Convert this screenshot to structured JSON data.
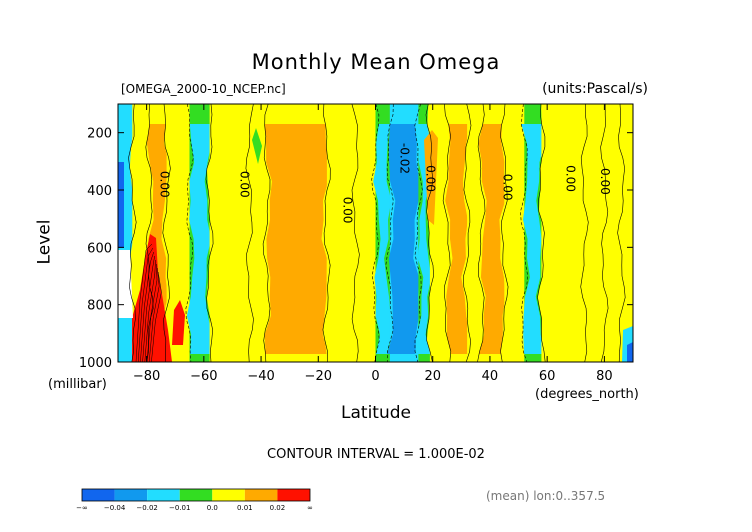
{
  "chart_data": {
    "type": "heatmap",
    "title": "Monthly Mean Omega",
    "subtitle_left": "[OMEGA_2000-10_NCEP.nc]",
    "subtitle_right": "(units:Pascal/s)",
    "xlabel": "Latitude",
    "xunit": "(degrees_north)",
    "ylabel": "Level",
    "yunit": "(millibar)",
    "xlim": [
      -90,
      90
    ],
    "ylim": [
      1000,
      100
    ],
    "x_ticks": [
      -80,
      -60,
      -40,
      -20,
      0,
      20,
      40,
      60,
      80
    ],
    "y_ticks": [
      200,
      400,
      600,
      800,
      1000
    ],
    "contour_interval": "CONTOUR INTERVAL = 1.000E-02",
    "footnote": "(mean) lon:0..357.5",
    "contour_labels": [
      {
        "text": "0.00",
        "lat": -74,
        "level": 380
      },
      {
        "text": "0.00",
        "lat": -46,
        "level": 380
      },
      {
        "text": "0.00",
        "lat": -10,
        "level": 470
      },
      {
        "text": "-0.02",
        "lat": 10,
        "level": 290
      },
      {
        "text": "0.00",
        "lat": 19,
        "level": 360
      },
      {
        "text": "0.00",
        "lat": 46,
        "level": 390
      },
      {
        "text": "0.00",
        "lat": 68,
        "level": 360
      },
      {
        "text": "0.00",
        "lat": 80,
        "level": 370
      }
    ],
    "colorbar": {
      "colors": [
        "#1166ee",
        "#1199ee",
        "#22ddff",
        "#33dd22",
        "#ffff00",
        "#ffaa00",
        "#ff1100"
      ],
      "labels": [
        "-∞",
        "-0.04",
        "-0.02",
        "-0.01",
        "0.0",
        "0.01",
        "0.02",
        "∞"
      ]
    },
    "bands": [
      {
        "lat": [
          -90,
          -85
        ],
        "value": -0.02
      },
      {
        "lat": [
          -85,
          -79
        ],
        "value": 0.005
      },
      {
        "lat": [
          -79,
          -73
        ],
        "value": 0.015
      },
      {
        "lat": [
          -73,
          -65
        ],
        "value": 0.005
      },
      {
        "lat": [
          -65,
          -58
        ],
        "value": -0.015
      },
      {
        "lat": [
          -58,
          -44
        ],
        "value": 0.0
      },
      {
        "lat": [
          -44,
          -38
        ],
        "value": 0.005
      },
      {
        "lat": [
          -38,
          -17
        ],
        "value": 0.015
      },
      {
        "lat": [
          -17,
          -7
        ],
        "value": 0.005
      },
      {
        "lat": [
          -7,
          0
        ],
        "value": 0.0
      },
      {
        "lat": [
          0,
          5
        ],
        "value": -0.015
      },
      {
        "lat": [
          5,
          15
        ],
        "value": -0.025
      },
      {
        "lat": [
          15,
          19
        ],
        "value": -0.015
      },
      {
        "lat": [
          19,
          25
        ],
        "value": 0.005
      },
      {
        "lat": [
          25,
          32
        ],
        "value": 0.015
      },
      {
        "lat": [
          32,
          37
        ],
        "value": 0.005
      },
      {
        "lat": [
          37,
          45
        ],
        "value": 0.015
      },
      {
        "lat": [
          45,
          52
        ],
        "value": 0.0
      },
      {
        "lat": [
          52,
          58
        ],
        "value": -0.015
      },
      {
        "lat": [
          58,
          73
        ],
        "value": 0.005
      },
      {
        "lat": [
          73,
          80
        ],
        "value": 0.0
      },
      {
        "lat": [
          80,
          86
        ],
        "value": 0.005
      },
      {
        "lat": [
          86,
          90
        ],
        "value": 0.0
      }
    ]
  }
}
